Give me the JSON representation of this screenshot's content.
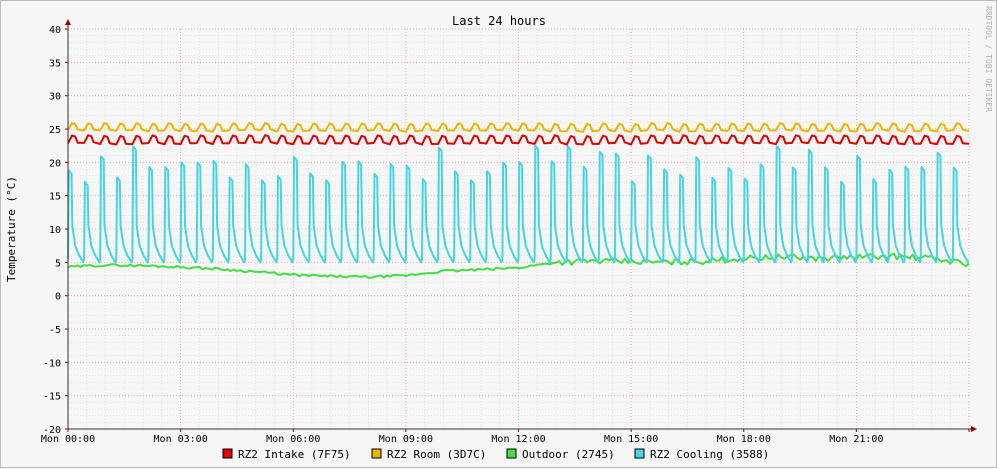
{
  "chart_data": {
    "type": "line",
    "title": "Last 24 hours",
    "ylabel": "Temperature (°C)",
    "watermark": "RRDTOOL / TOBI OETIKER",
    "ylim": [
      -20,
      40
    ],
    "y_ticks": [
      40,
      35,
      30,
      25,
      20,
      15,
      10,
      5,
      0,
      -5,
      -10,
      -15,
      -20
    ],
    "x_ticks": [
      "Mon 00:00",
      "Mon 03:00",
      "Mon 06:00",
      "Mon 09:00",
      "Mon 12:00",
      "Mon 15:00",
      "Mon 18:00",
      "Mon 21:00"
    ],
    "x_range_hours": [
      0,
      24
    ],
    "grid": true,
    "legend_position": "bottom",
    "series": [
      {
        "name": "RZ2 Intake (7F75)",
        "color": "#e00000",
        "kind": "oscillating",
        "cycles": 56,
        "low": 22.8,
        "high": 24.0
      },
      {
        "name": "RZ2 Room (3D7C)",
        "color": "#e8b600",
        "kind": "oscillating",
        "cycles": 56,
        "low": 24.7,
        "high": 25.8
      },
      {
        "name": "Outdoor (2745)",
        "color": "#44dd44",
        "kind": "trend",
        "points": [
          [
            0,
            4.3
          ],
          [
            1,
            4.6
          ],
          [
            2,
            4.5
          ],
          [
            3,
            4.3
          ],
          [
            4,
            4.0
          ],
          [
            5,
            3.6
          ],
          [
            6,
            3.1
          ],
          [
            7,
            2.9
          ],
          [
            8,
            2.8
          ],
          [
            9,
            3.0
          ],
          [
            10,
            3.7
          ],
          [
            11,
            3.9
          ],
          [
            12,
            4.2
          ],
          [
            13,
            5.0
          ],
          [
            14,
            5.2
          ],
          [
            15,
            5.1
          ],
          [
            16,
            5.0
          ],
          [
            17,
            5.2
          ],
          [
            18,
            5.6
          ],
          [
            19,
            5.8
          ],
          [
            20,
            5.6
          ],
          [
            21,
            5.8
          ],
          [
            22,
            5.9
          ],
          [
            23,
            5.6
          ],
          [
            24,
            4.8
          ]
        ]
      },
      {
        "name": "RZ2 Cooling (3588)",
        "color": "#44d4e4",
        "kind": "spikes",
        "cycles": 56,
        "base": 5.0,
        "peak_min": 17.0,
        "peak_max": 22.5
      }
    ]
  }
}
